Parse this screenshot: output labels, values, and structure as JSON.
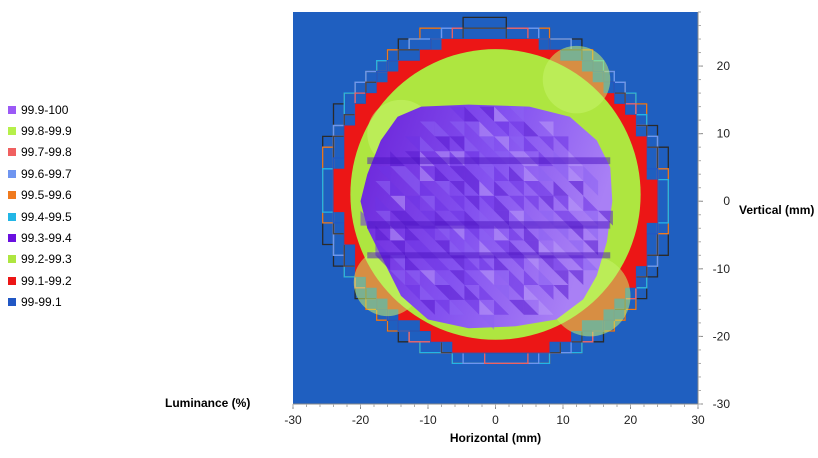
{
  "chart_data": {
    "type": "heatmap",
    "title": "",
    "xlabel": "Horizontal (mm)",
    "ylabel": "Vertical (mm)",
    "legend_title": "Luminance (%)",
    "legend_position": "left",
    "xlim": [
      -30,
      30
    ],
    "ylim": [
      -30,
      28
    ],
    "xticks": [
      -30,
      -20,
      -10,
      0,
      10,
      20,
      30
    ],
    "yticks": [
      -30,
      -20,
      -10,
      0,
      10,
      20
    ],
    "background_color": "#1f5fc0",
    "legend": [
      {
        "label": "99.9-100",
        "color": "#9b59f6"
      },
      {
        "label": "99.8-99.9",
        "color": "#b6f04a"
      },
      {
        "label": "99.7-99.8",
        "color": "#f06060"
      },
      {
        "label": "99.6-99.7",
        "color": "#6f95f0"
      },
      {
        "label": "99.5-99.6",
        "color": "#f07a1e"
      },
      {
        "label": "99.4-99.5",
        "color": "#22b6e6"
      },
      {
        "label": "99.3-99.4",
        "color": "#6a10e0"
      },
      {
        "label": "99.2-99.3",
        "color": "#aee640"
      },
      {
        "label": "99.1-99.2",
        "color": "#ec1616"
      },
      {
        "label": "99-99.1",
        "color": "#2157c4"
      }
    ],
    "regions": [
      {
        "band": "99-99.1",
        "color": "#1f5fc0",
        "shape": "background"
      },
      {
        "band": "99.1-99.2",
        "color": "#ec1616",
        "shape": "circle",
        "center": [
          0,
          1
        ],
        "radius": 23.5
      },
      {
        "band": "99.2-99.3",
        "color": "#aee640",
        "shape": "circle",
        "center": [
          0,
          1
        ],
        "radius": 21.5
      },
      {
        "band": "99.3-99.4",
        "color": "#7a3cf0",
        "shape": "blob",
        "center": [
          -0.5,
          -1
        ]
      }
    ]
  }
}
